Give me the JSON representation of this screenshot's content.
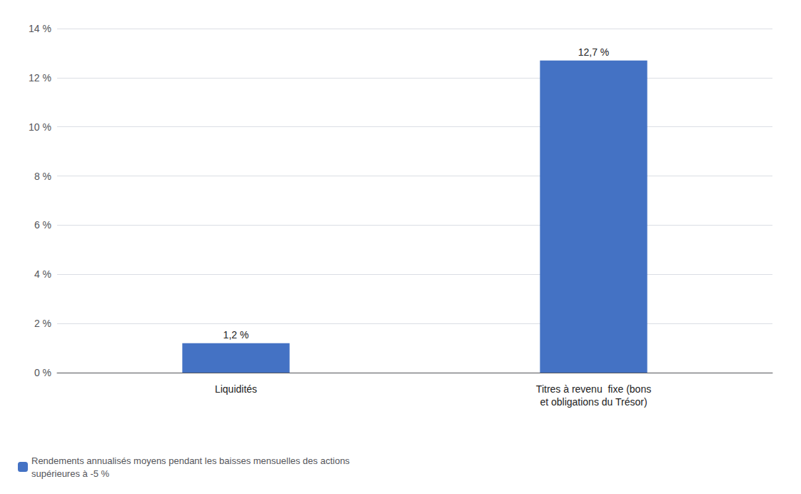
{
  "chart_data": {
    "type": "bar",
    "categories": [
      "Liquidités",
      "Titres à revenu  fixe (bons\net obligations du Trésor)"
    ],
    "series": [
      {
        "name": "Rendements annualisés moyens pendant les baisses mensuelles des actions\nsupérieures à -5 %",
        "color": "#4472C4",
        "values": [
          1.2,
          12.7
        ],
        "value_labels": [
          "1,2 %",
          "12,7 %"
        ]
      }
    ],
    "ylim": [
      0,
      14
    ],
    "yticks": [
      {
        "value": 0,
        "label": "0 %"
      },
      {
        "value": 2,
        "label": "2 %"
      },
      {
        "value": 4,
        "label": "4 %"
      },
      {
        "value": 6,
        "label": "6 %"
      },
      {
        "value": 8,
        "label": "8 %"
      },
      {
        "value": 10,
        "label": "10 %"
      },
      {
        "value": 12,
        "label": "12 %"
      },
      {
        "value": 14,
        "label": "14 %"
      }
    ],
    "grid": true,
    "legend": "bottom-left",
    "data_labels": true
  }
}
